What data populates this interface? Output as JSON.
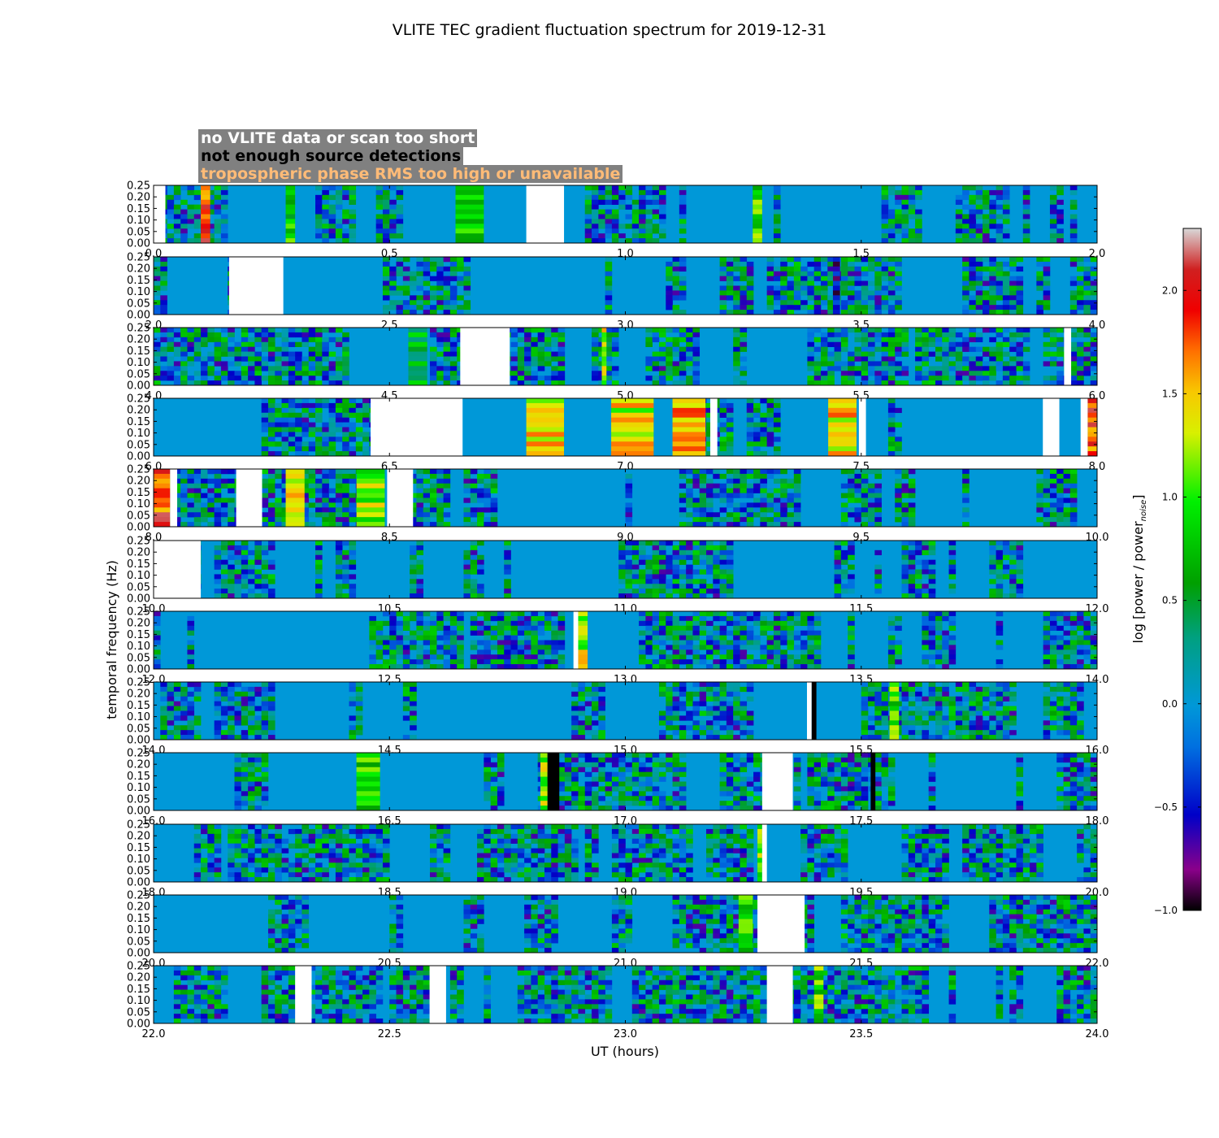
{
  "chart_data": {
    "type": "heatmap",
    "title": "VLITE TEC gradient fluctuation spectrum for 2019-12-31",
    "xlabel": "UT (hours)",
    "ylabel": "temporal frequency (Hz)",
    "colorbar_label": "log [power / power",
    "colorbar_label_sub": "noise",
    "colorbar_label_end": "]",
    "colorbar_range": [
      -1.0,
      2.3
    ],
    "colorbar_ticks": [
      "−1.0",
      "−0.5",
      "0.0",
      "0.5",
      "1.0",
      "1.5",
      "2.0"
    ],
    "colorbar_tick_values": [
      -1.0,
      -0.5,
      0.0,
      0.5,
      1.0,
      1.5,
      2.0
    ],
    "ylim": [
      0.0,
      0.25
    ],
    "ytick_labels": [
      "0.00",
      "0.05",
      "0.10",
      "0.15",
      "0.20",
      "0.25"
    ],
    "panels": [
      {
        "xlim": [
          0,
          2
        ],
        "xticks": [
          "0.0",
          "0.5",
          "1.0",
          "1.5",
          "2.0"
        ],
        "no_data": [
          [
            0.0,
            0.025
          ],
          [
            0.79,
            0.87
          ]
        ],
        "low_sources": [],
        "hot": [
          [
            0.1,
            0.12,
            1.8
          ],
          [
            0.28,
            0.3,
            0.8
          ],
          [
            0.64,
            0.7,
            0.8
          ],
          [
            1.27,
            1.29,
            0.9
          ]
        ]
      },
      {
        "xlim": [
          2,
          4
        ],
        "xticks": [
          "2.0",
          "2.5",
          "3.0",
          "3.5",
          "4.0"
        ],
        "no_data": [
          [
            2.16,
            2.275
          ]
        ],
        "low_sources": [],
        "hot": [
          [
            3.44,
            3.455,
            -0.6
          ]
        ]
      },
      {
        "xlim": [
          4,
          6
        ],
        "xticks": [
          "4.0",
          "4.5",
          "5.0",
          "5.5",
          "6.0"
        ],
        "no_data": [
          [
            4.65,
            4.755
          ],
          [
            5.93,
            5.945
          ]
        ],
        "low_sources": [],
        "hot": [
          [
            4.54,
            4.58,
            0.6
          ],
          [
            4.95,
            4.96,
            1.2
          ]
        ]
      },
      {
        "xlim": [
          6,
          8
        ],
        "xticks": [
          "6.0",
          "6.5",
          "7.0",
          "7.5",
          "8.0"
        ],
        "no_data": [
          [
            6.46,
            6.655
          ],
          [
            7.18,
            7.195
          ],
          [
            7.495,
            7.51
          ],
          [
            7.885,
            7.92
          ],
          [
            7.965,
            7.98
          ]
        ],
        "low_sources": [],
        "hot": [
          [
            6.79,
            6.87,
            1.4
          ],
          [
            6.97,
            7.06,
            1.3
          ],
          [
            7.1,
            7.17,
            1.5
          ],
          [
            7.43,
            7.49,
            1.4
          ],
          [
            7.98,
            8.0,
            1.8
          ]
        ]
      },
      {
        "xlim": [
          8,
          10
        ],
        "xticks": [
          "8.0",
          "8.5",
          "9.0",
          "9.5",
          "10.0"
        ],
        "no_data": [
          [
            8.035,
            8.05
          ],
          [
            8.175,
            8.23
          ],
          [
            8.495,
            8.55
          ]
        ],
        "low_sources": [],
        "hot": [
          [
            8.0,
            8.035,
            1.8
          ],
          [
            8.28,
            8.32,
            1.4
          ],
          [
            8.43,
            8.49,
            1.1
          ]
        ]
      },
      {
        "xlim": [
          10,
          12
        ],
        "xticks": [
          "10.0",
          "10.5",
          "11.0",
          "11.5",
          "12.0"
        ],
        "no_data": [
          [
            10.0,
            10.1
          ]
        ],
        "low_sources": [],
        "hot": []
      },
      {
        "xlim": [
          12,
          14
        ],
        "xticks": [
          "12.0",
          "12.5",
          "13.0",
          "13.5",
          "14.0"
        ],
        "no_data": [
          [
            12.89,
            12.9
          ]
        ],
        "low_sources": [],
        "hot": [
          [
            12.9,
            12.92,
            1.2
          ]
        ]
      },
      {
        "xlim": [
          14,
          16
        ],
        "xticks": [
          "14.0",
          "14.5",
          "15.0",
          "15.5",
          "16.0"
        ],
        "no_data": [
          [
            15.385,
            15.395
          ]
        ],
        "low_sources": [
          [
            15.395,
            15.405
          ]
        ],
        "hot": [
          [
            15.56,
            15.58,
            0.9
          ]
        ]
      },
      {
        "xlim": [
          16,
          18
        ],
        "xticks": [
          "16.0",
          "16.5",
          "17.0",
          "17.5",
          "18.0"
        ],
        "no_data": [
          [
            17.29,
            17.355
          ]
        ],
        "low_sources": [
          [
            16.835,
            16.86
          ],
          [
            17.52,
            17.53
          ]
        ],
        "hot": [
          [
            16.82,
            16.835,
            1.2
          ],
          [
            16.43,
            16.48,
            0.8
          ]
        ]
      },
      {
        "xlim": [
          18,
          20
        ],
        "xticks": [
          "18.0",
          "18.5",
          "19.0",
          "19.5",
          "20.0"
        ],
        "no_data": [
          [
            19.29,
            19.3
          ]
        ],
        "low_sources": [],
        "hot": [
          [
            19.28,
            19.29,
            1.0
          ]
        ]
      },
      {
        "xlim": [
          20,
          22
        ],
        "xticks": [
          "20.0",
          "20.5",
          "21.0",
          "21.5",
          "22.0"
        ],
        "no_data": [
          [
            21.28,
            21.38
          ]
        ],
        "low_sources": [],
        "hot": [
          [
            21.24,
            21.27,
            0.8
          ]
        ]
      },
      {
        "xlim": [
          22,
          24
        ],
        "xticks": [
          "22.0",
          "22.5",
          "23.0",
          "23.5",
          "24.0"
        ],
        "no_data": [
          [
            22.3,
            22.335
          ],
          [
            22.585,
            22.62
          ],
          [
            23.3,
            23.355
          ]
        ],
        "low_sources": [],
        "hot": [
          [
            23.4,
            23.42,
            0.9
          ]
        ]
      }
    ],
    "legend": [
      {
        "text": "no VLITE data or scan too short",
        "color": "#ffffff"
      },
      {
        "text": "not enough source detections",
        "color": "#000000"
      },
      {
        "text": "tropospheric phase RMS too high or unavailable",
        "color": "#ffbb77"
      }
    ]
  }
}
